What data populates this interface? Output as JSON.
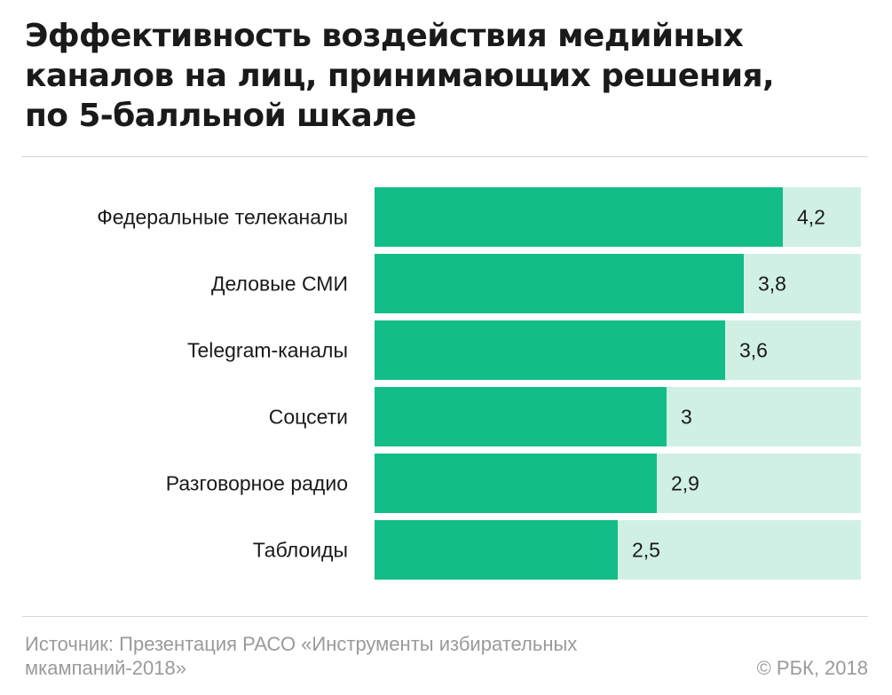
{
  "title_lines": [
    "Эффективность воздействия медийных",
    "каналов на лиц, принимающих решения,",
    "по 5-балльной шкале"
  ],
  "colors": {
    "bar": "#13bd88",
    "track": "#d0f0e5",
    "label": "#1a1a1a",
    "footer": "#9a9a9a"
  },
  "chart_data": {
    "type": "bar",
    "orientation": "horizontal",
    "title": "Эффективность воздействия медийных каналов на лиц, принимающих решения, по 5-балльной шкале",
    "categories": [
      "Федеральные телеканалы",
      "Деловые СМИ",
      "Telegram-каналы",
      "Соцсети",
      "Разговорное радио",
      "Таблоиды"
    ],
    "values": [
      4.2,
      3.8,
      3.6,
      3,
      2.9,
      2.5
    ],
    "value_labels": [
      "4,2",
      "3,8",
      "3,6",
      "3",
      "2,9",
      "2,5"
    ],
    "xlim": [
      0,
      5
    ],
    "grid": false,
    "legend": "none"
  },
  "footer": {
    "source": "Источник: Презентация РАСО «Инструменты избирательных мкампаний-2018»",
    "copyright": "© РБК, 2018"
  }
}
